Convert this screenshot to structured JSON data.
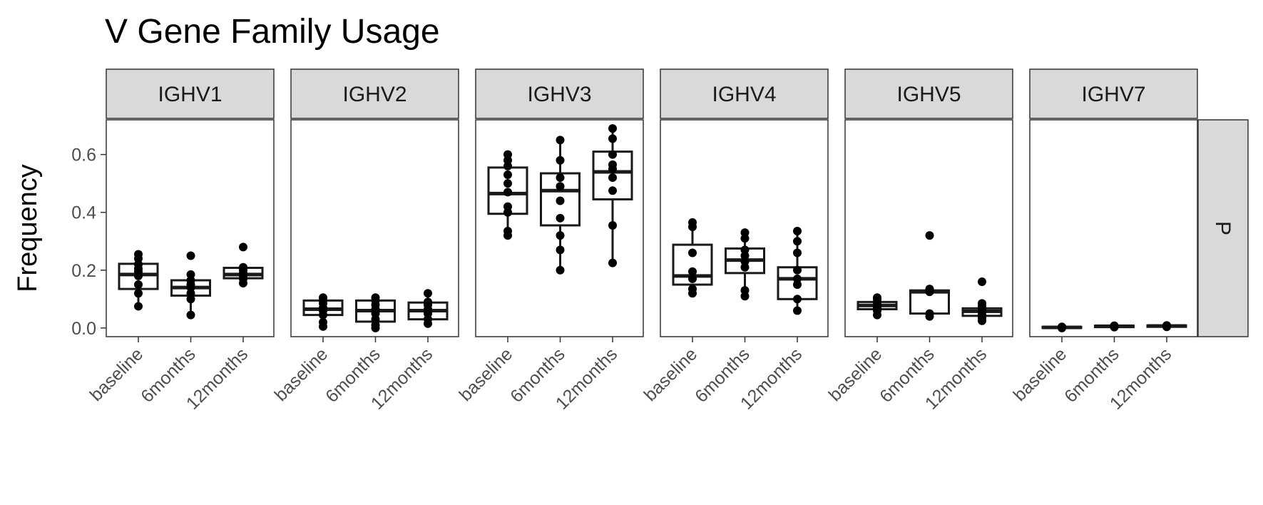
{
  "chart_data": {
    "type": "box",
    "title": "V Gene Family Usage",
    "xlabel": "",
    "ylabel": "Frequency",
    "ylim": [
      -0.03,
      0.72
    ],
    "yticks": [
      0.0,
      0.2,
      0.4,
      0.6
    ],
    "ytick_labels": [
      "0.0",
      "0.2",
      "0.4",
      "0.6"
    ],
    "categories": [
      "baseline",
      "6months",
      "12months"
    ],
    "row_facet_label": "P",
    "grid": false,
    "colors": {
      "box_stroke": "#1a1a1a",
      "point": "#000000",
      "strip_fill": "#d9d9d9",
      "strip_border": "#333333",
      "panel_border": "#333333"
    },
    "panels": [
      {
        "name": "IGHV1",
        "groups": [
          {
            "category": "baseline",
            "q1": 0.135,
            "median": 0.185,
            "q3": 0.222,
            "whisker_low": 0.075,
            "whisker_high": 0.255,
            "points": [
              0.075,
              0.12,
              0.15,
              0.18,
              0.195,
              0.205,
              0.22,
              0.24,
              0.255
            ]
          },
          {
            "category": "6months",
            "q1": 0.112,
            "median": 0.14,
            "q3": 0.165,
            "whisker_low": 0.045,
            "whisker_high": 0.185,
            "points": [
              0.045,
              0.1,
              0.12,
              0.14,
              0.15,
              0.165,
              0.185,
              0.25
            ]
          },
          {
            "category": "12months",
            "q1": 0.172,
            "median": 0.185,
            "q3": 0.208,
            "whisker_low": 0.155,
            "whisker_high": 0.215,
            "points": [
              0.155,
              0.17,
              0.18,
              0.19,
              0.2,
              0.21,
              0.28
            ]
          }
        ]
      },
      {
        "name": "IGHV2",
        "groups": [
          {
            "category": "baseline",
            "q1": 0.045,
            "median": 0.065,
            "q3": 0.095,
            "whisker_low": 0.005,
            "whisker_high": 0.105,
            "points": [
              0.005,
              0.02,
              0.045,
              0.06,
              0.07,
              0.085,
              0.095,
              0.105
            ]
          },
          {
            "category": "6months",
            "q1": 0.022,
            "median": 0.06,
            "q3": 0.095,
            "whisker_low": 0.0,
            "whisker_high": 0.105,
            "points": [
              0.0,
              0.01,
              0.03,
              0.05,
              0.065,
              0.08,
              0.095,
              0.105
            ]
          },
          {
            "category": "12months",
            "q1": 0.03,
            "median": 0.06,
            "q3": 0.088,
            "whisker_low": 0.015,
            "whisker_high": 0.12,
            "points": [
              0.015,
              0.03,
              0.05,
              0.065,
              0.08,
              0.09,
              0.12
            ]
          }
        ]
      },
      {
        "name": "IGHV3",
        "groups": [
          {
            "category": "baseline",
            "q1": 0.395,
            "median": 0.465,
            "q3": 0.555,
            "whisker_low": 0.32,
            "whisker_high": 0.6,
            "points": [
              0.32,
              0.335,
              0.4,
              0.42,
              0.47,
              0.5,
              0.53,
              0.56,
              0.58,
              0.6
            ]
          },
          {
            "category": "6months",
            "q1": 0.355,
            "median": 0.475,
            "q3": 0.535,
            "whisker_low": 0.2,
            "whisker_high": 0.65,
            "points": [
              0.2,
              0.27,
              0.32,
              0.38,
              0.44,
              0.49,
              0.52,
              0.58,
              0.65
            ]
          },
          {
            "category": "12months",
            "q1": 0.445,
            "median": 0.54,
            "q3": 0.61,
            "whisker_low": 0.225,
            "whisker_high": 0.69,
            "points": [
              0.225,
              0.355,
              0.475,
              0.52,
              0.55,
              0.565,
              0.6,
              0.655,
              0.69
            ]
          }
        ]
      },
      {
        "name": "IGHV4",
        "groups": [
          {
            "category": "baseline",
            "q1": 0.15,
            "median": 0.18,
            "q3": 0.288,
            "whisker_low": 0.12,
            "whisker_high": 0.365,
            "points": [
              0.12,
              0.135,
              0.17,
              0.195,
              0.26,
              0.35,
              0.365
            ]
          },
          {
            "category": "6months",
            "q1": 0.19,
            "median": 0.235,
            "q3": 0.275,
            "whisker_low": 0.11,
            "whisker_high": 0.33,
            "points": [
              0.11,
              0.13,
              0.21,
              0.23,
              0.25,
              0.27,
              0.31,
              0.33
            ]
          },
          {
            "category": "12months",
            "q1": 0.1,
            "median": 0.17,
            "q3": 0.21,
            "whisker_low": 0.06,
            "whisker_high": 0.335,
            "points": [
              0.06,
              0.1,
              0.15,
              0.17,
              0.2,
              0.26,
              0.3,
              0.335
            ]
          }
        ]
      },
      {
        "name": "IGHV5",
        "groups": [
          {
            "category": "baseline",
            "q1": 0.065,
            "median": 0.078,
            "q3": 0.09,
            "whisker_low": 0.045,
            "whisker_high": 0.105,
            "points": [
              0.045,
              0.06,
              0.07,
              0.08,
              0.09,
              0.1,
              0.105
            ]
          },
          {
            "category": "6months",
            "q1": 0.05,
            "median": 0.125,
            "q3": 0.13,
            "whisker_low": 0.04,
            "whisker_high": 0.135,
            "points": [
              0.04,
              0.05,
              0.125,
              0.13,
              0.135,
              0.32
            ]
          },
          {
            "category": "12months",
            "q1": 0.042,
            "median": 0.058,
            "q3": 0.068,
            "whisker_low": 0.025,
            "whisker_high": 0.085,
            "points": [
              0.025,
              0.035,
              0.045,
              0.055,
              0.065,
              0.075,
              0.085,
              0.16
            ]
          }
        ]
      },
      {
        "name": "IGHV7",
        "groups": [
          {
            "category": "baseline",
            "q1": 0.0,
            "median": 0.002,
            "q3": 0.004,
            "whisker_low": 0.0,
            "whisker_high": 0.005,
            "points": [
              0.0,
              0.002,
              0.004
            ]
          },
          {
            "category": "6months",
            "q1": 0.003,
            "median": 0.006,
            "q3": 0.008,
            "whisker_low": 0.002,
            "whisker_high": 0.009,
            "points": [
              0.003,
              0.006,
              0.008
            ]
          },
          {
            "category": "12months",
            "q1": 0.004,
            "median": 0.007,
            "q3": 0.009,
            "whisker_low": 0.003,
            "whisker_high": 0.01,
            "points": [
              0.004,
              0.007,
              0.009
            ]
          }
        ]
      }
    ]
  }
}
